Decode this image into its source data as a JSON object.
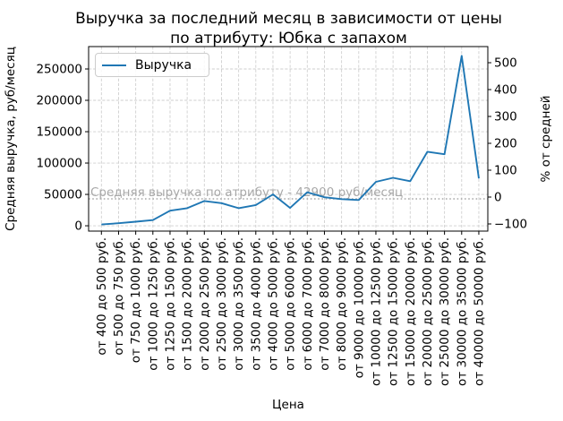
{
  "figure": {
    "title_line1": "Выручка за последний месяц в зависимости от цены",
    "title_line2": "по атрибуту: Юбка с запахом"
  },
  "chart_data": {
    "type": "line",
    "title": "Выручка за последний месяц в зависимости от цены по атрибуту: Юбка с запахом",
    "xlabel": "Цена",
    "ylabel_left": "Средняя выручка, руб/месяц",
    "ylabel_right": "% от средней",
    "legend": {
      "position": "upper left",
      "entries": [
        "Выручка"
      ]
    },
    "line_color": "#1f77b4",
    "grid": true,
    "grid_style": "dashed",
    "categories": [
      "от 400 до 500 руб.",
      "от 500 до 750 руб.",
      "от 750 до 1000 руб.",
      "от 1000 до 1250 руб.",
      "от 1250 до 1500 руб.",
      "от 1500 до 2000 руб.",
      "от 2000 до 2500 руб.",
      "от 2500 до 3000 руб.",
      "от 3000 до 3500 руб.",
      "от 3500 до 4000 руб.",
      "от 4000 до 5000 руб.",
      "от 5000 до 6000 руб.",
      "от 6000 до 7000 руб.",
      "от 7000 до 8000 руб.",
      "от 8000 до 9000 руб.",
      "от 9000 до 10000 руб.",
      "от 10000 до 12500 руб.",
      "от 12500 до 15000 руб.",
      "от 15000 до 20000 руб.",
      "от 20000 до 25000 руб.",
      "от 25000 до 30000 руб.",
      "от 30000 до 35000 руб.",
      "от 40000 до 50000 руб."
    ],
    "values": [
      2000,
      4000,
      6500,
      9000,
      24000,
      28000,
      39500,
      36000,
      28000,
      33000,
      50000,
      28500,
      53500,
      45500,
      42500,
      41000,
      70000,
      76500,
      71000,
      118000,
      114000,
      271000,
      75500
    ],
    "average_line": {
      "value": 42900,
      "label": "Средняя выручка по атрибуту - 42900 руб/месяц",
      "style": "dotted",
      "color": "#a9a9a9"
    },
    "left_axis": {
      "ticks": [
        0,
        50000,
        100000,
        150000,
        200000,
        250000
      ],
      "lim": [
        -8500,
        285700
      ]
    },
    "right_axis": {
      "ticks": [
        500,
        400,
        300,
        200,
        100,
        0,
        -100
      ],
      "unit": "%"
    }
  }
}
